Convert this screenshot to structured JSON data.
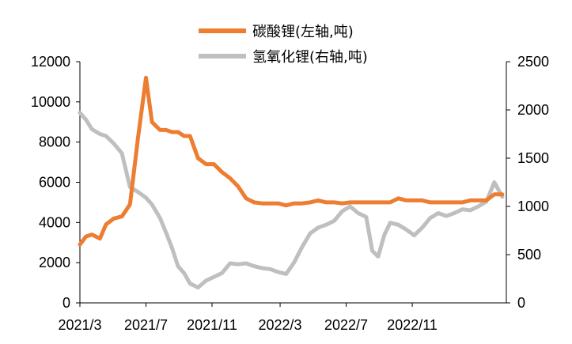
{
  "chart_data": {
    "type": "line",
    "title": "",
    "xlabel": "",
    "ylabel": "",
    "ylim_left": [
      0,
      12000
    ],
    "ylim_right": [
      0,
      2500
    ],
    "left_ticks": [
      "0",
      "2000",
      "4000",
      "6000",
      "8000",
      "10000",
      "12000"
    ],
    "right_ticks": [
      "0",
      "500",
      "1000",
      "1500",
      "2000",
      "2500"
    ],
    "x_ticks": [
      "2021/3",
      "2021/7",
      "2021/11",
      "2022/3",
      "2022/7",
      "2022/11"
    ],
    "grid": false,
    "legend_position": "top-center",
    "series": [
      {
        "name": "碳酸锂(左轴,吨)",
        "axis": "left",
        "color": "#ED7D31",
        "x": [
          2021.17,
          2021.2,
          2021.23,
          2021.27,
          2021.3,
          2021.34,
          2021.38,
          2021.42,
          2021.46,
          2021.5,
          2021.53,
          2021.57,
          2021.6,
          2021.63,
          2021.66,
          2021.69,
          2021.72,
          2021.76,
          2021.8,
          2021.84,
          2021.88,
          2021.92,
          2021.96,
          2022.0,
          2022.04,
          2022.08,
          2022.12,
          2022.16,
          2022.2,
          2022.24,
          2022.28,
          2022.32,
          2022.36,
          2022.4,
          2022.44,
          2022.48,
          2022.52,
          2022.56,
          2022.6,
          2022.64,
          2022.68,
          2022.72,
          2022.76,
          2022.8,
          2022.84,
          2022.88,
          2022.92,
          2022.96,
          2023.0,
          2023.04,
          2023.08,
          2023.12,
          2023.16,
          2023.2,
          2023.24,
          2023.28
        ],
        "values": [
          2900,
          3300,
          3400,
          3200,
          3900,
          4200,
          4300,
          4900,
          8200,
          11200,
          9000,
          8600,
          8600,
          8500,
          8500,
          8300,
          8300,
          7200,
          6900,
          6900,
          6500,
          6200,
          5800,
          5200,
          5000,
          4950,
          4950,
          4950,
          4850,
          4950,
          4950,
          5000,
          5100,
          5000,
          5000,
          4950,
          5000,
          5000,
          5000,
          5000,
          5000,
          5000,
          5200,
          5100,
          5100,
          5100,
          5000,
          5000,
          5000,
          5000,
          5000,
          5100,
          5100,
          5100,
          5400,
          5400
        ]
      },
      {
        "name": "氢氧化锂(右轴,吨)",
        "axis": "right",
        "color": "#BFBFBF",
        "x": [
          2021.17,
          2021.2,
          2021.23,
          2021.27,
          2021.3,
          2021.34,
          2021.38,
          2021.42,
          2021.46,
          2021.5,
          2021.53,
          2021.57,
          2021.6,
          2021.63,
          2021.66,
          2021.69,
          2021.72,
          2021.76,
          2021.8,
          2021.84,
          2021.88,
          2021.92,
          2021.96,
          2022.0,
          2022.04,
          2022.08,
          2022.12,
          2022.16,
          2022.2,
          2022.24,
          2022.28,
          2022.32,
          2022.36,
          2022.4,
          2022.44,
          2022.48,
          2022.52,
          2022.56,
          2022.6,
          2022.63,
          2022.66,
          2022.69,
          2022.72,
          2022.76,
          2022.8,
          2022.84,
          2022.88,
          2022.92,
          2022.96,
          2023.0,
          2023.04,
          2023.08,
          2023.12,
          2023.16,
          2023.2,
          2023.24,
          2023.28
        ],
        "values": [
          1970,
          1900,
          1800,
          1750,
          1730,
          1650,
          1550,
          1200,
          1150,
          1090,
          1020,
          880,
          730,
          570,
          380,
          310,
          200,
          160,
          230,
          270,
          310,
          410,
          400,
          410,
          380,
          360,
          350,
          320,
          300,
          420,
          580,
          720,
          780,
          810,
          850,
          950,
          1000,
          930,
          890,
          540,
          480,
          700,
          830,
          810,
          760,
          700,
          780,
          880,
          930,
          900,
          930,
          970,
          960,
          1000,
          1050,
          1250,
          1100
        ]
      }
    ]
  }
}
